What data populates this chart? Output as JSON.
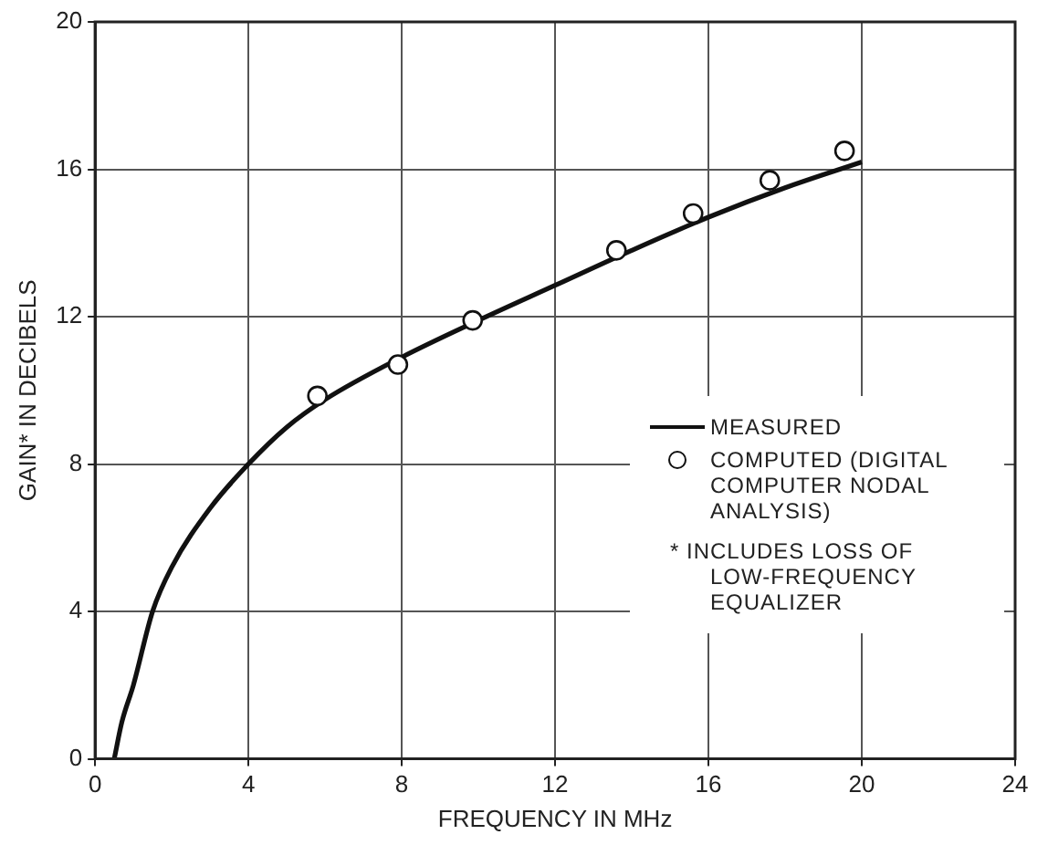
{
  "chart_data": {
    "type": "line",
    "xlabel": "FREQUENCY IN MHz",
    "ylabel": "GAIN* IN DECIBELS",
    "xlim": [
      0,
      24
    ],
    "xticks": [
      0,
      4,
      8,
      12,
      16,
      20,
      24
    ],
    "ylim": [
      0,
      20
    ],
    "yticks": [
      0,
      4,
      8,
      12,
      16,
      20
    ],
    "grid": true,
    "legend": "bottom right",
    "series": [
      {
        "name": "MEASURED",
        "color": "#111111",
        "marker": "none",
        "line_style": "solid",
        "x": [
          0.5,
          0.7,
          1,
          1.5,
          2,
          3,
          4,
          5,
          6,
          8,
          10,
          12,
          14,
          16,
          18,
          20
        ],
        "values": [
          0,
          1,
          2,
          4,
          5.2,
          6.8,
          8,
          9,
          9.75,
          10.9,
          11.9,
          12.85,
          13.8,
          14.7,
          15.5,
          16.2
        ]
      },
      {
        "name": "COMPUTED (DIGITAL COMPUTER NODAL ANALYSIS)",
        "type": "scatter",
        "color": "#111111",
        "marker": "circle",
        "x": [
          5.8,
          7.9,
          9.85,
          13.6,
          15.6,
          17.6,
          19.55
        ],
        "values": [
          9.85,
          10.7,
          11.9,
          13.8,
          14.8,
          15.7,
          16.5
        ]
      }
    ],
    "annotations": [
      "* INCLUDES LOSS OF LOW-FREQUENCY EQUALIZER"
    ]
  }
}
